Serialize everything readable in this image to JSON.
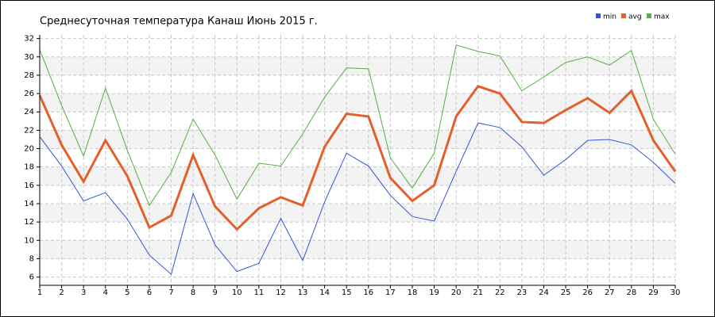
{
  "chart_data": {
    "type": "line",
    "title": "Среднесуточная температура Канаш  Июнь 2015 г.",
    "x": [
      1,
      2,
      3,
      4,
      5,
      6,
      7,
      8,
      9,
      10,
      11,
      12,
      13,
      14,
      15,
      16,
      17,
      18,
      19,
      20,
      21,
      22,
      23,
      24,
      25,
      26,
      27,
      28,
      29,
      30
    ],
    "xlim": [
      1,
      30
    ],
    "xticks": [
      1,
      2,
      3,
      4,
      5,
      6,
      7,
      8,
      9,
      10,
      11,
      12,
      13,
      14,
      15,
      16,
      17,
      18,
      19,
      20,
      21,
      22,
      23,
      24,
      25,
      26,
      27,
      28,
      29,
      30
    ],
    "ylim": [
      5.1,
      32.4
    ],
    "yticks": [
      6,
      8,
      10,
      12,
      14,
      16,
      18,
      20,
      22,
      24,
      26,
      28,
      30,
      32
    ],
    "grid": true,
    "legend": "top-right",
    "series": [
      {
        "name": "min",
        "color": "#3355dd",
        "values": [
          21.3,
          18.1,
          14.3,
          15.2,
          12.3,
          8.4,
          6.3,
          15.1,
          9.5,
          6.6,
          7.5,
          12.4,
          7.8,
          14.2,
          19.5,
          18.1,
          14.9,
          12.6,
          12.1,
          17.5,
          22.8,
          22.3,
          20.2,
          17.1,
          18.8,
          20.9,
          21.0,
          20.4,
          18.5,
          16.2
        ]
      },
      {
        "name": "avg",
        "color": "#e2602c",
        "values": [
          25.8,
          20.4,
          16.4,
          20.9,
          17.0,
          11.4,
          12.7,
          19.3,
          13.7,
          11.2,
          13.5,
          14.7,
          13.8,
          20.2,
          23.8,
          23.5,
          16.8,
          14.3,
          16.0,
          23.5,
          26.8,
          26.0,
          22.9,
          22.8,
          24.2,
          25.5,
          23.9,
          26.3,
          20.9,
          17.5
        ]
      },
      {
        "name": "max",
        "color": "#55b043",
        "values": [
          30.8,
          24.7,
          19.2,
          26.6,
          19.8,
          13.8,
          17.4,
          23.2,
          19.3,
          14.5,
          18.4,
          18.1,
          21.6,
          25.6,
          28.8,
          28.7,
          19.0,
          15.7,
          19.5,
          31.3,
          30.6,
          30.1,
          26.3,
          27.8,
          29.4,
          30.0,
          29.1,
          30.7,
          23.2,
          19.4
        ]
      }
    ]
  }
}
